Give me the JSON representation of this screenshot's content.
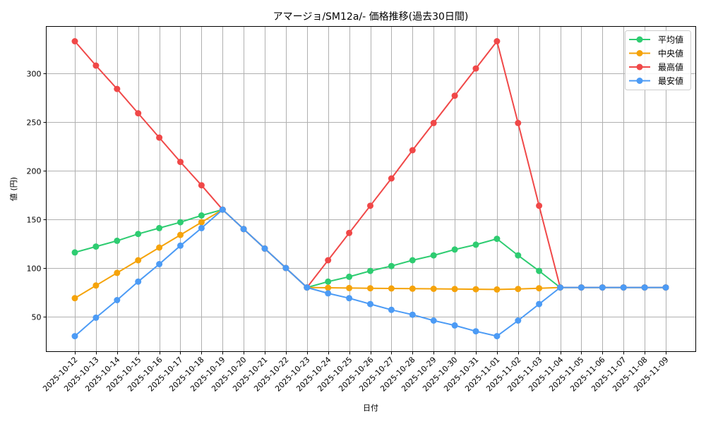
{
  "chart_data": {
    "type": "line",
    "title": "アマージョ/SM12a/- 価格推移(過去30日間)",
    "xlabel": "日付",
    "ylabel": "値 (円)",
    "ylim": [
      15,
      345
    ],
    "yticks": [
      50,
      100,
      150,
      200,
      250,
      300
    ],
    "grid": true,
    "legend_position": "upper right",
    "categories": [
      "2025-10-12",
      "2025-10-13",
      "2025-10-14",
      "2025-10-15",
      "2025-10-16",
      "2025-10-17",
      "2025-10-18",
      "2025-10-19",
      "2025-10-20",
      "2025-10-21",
      "2025-10-22",
      "2025-10-23",
      "2025-10-24",
      "2025-10-25",
      "2025-10-26",
      "2025-10-27",
      "2025-10-28",
      "2025-10-29",
      "2025-10-30",
      "2025-10-31",
      "2025-11-01",
      "2025-11-02",
      "2025-11-03",
      "2025-11-04",
      "2025-11-05",
      "2025-11-06",
      "2025-11-07",
      "2025-11-08",
      "2025-11-09"
    ],
    "series": [
      {
        "name": "平均値",
        "color": "#2ecc71",
        "values": [
          116,
          122,
          128,
          135,
          141,
          147,
          154,
          160,
          140,
          120,
          100,
          80,
          86,
          91,
          97,
          102,
          108,
          113,
          119,
          124,
          130,
          113,
          97,
          80,
          80,
          80,
          80,
          80,
          80
        ]
      },
      {
        "name": "中央値",
        "color": "#f5a30a",
        "values": [
          69,
          82,
          95,
          108,
          121,
          134,
          147,
          160,
          140,
          120,
          100,
          80,
          79.7,
          79.4,
          79.2,
          79,
          78.8,
          78.6,
          78.4,
          78.2,
          78,
          78.5,
          79.2,
          80,
          80,
          80,
          80,
          80,
          80
        ]
      },
      {
        "name": "最高値",
        "color": "#f04848",
        "values": [
          333,
          308,
          284,
          259,
          234,
          209,
          185,
          160,
          140,
          120,
          100,
          80,
          108,
          136,
          164,
          192,
          221,
          249,
          277,
          305,
          333,
          249,
          164,
          80,
          80,
          80,
          80,
          80,
          80
        ]
      },
      {
        "name": "最安値",
        "color": "#4c9bf5",
        "values": [
          30,
          49,
          67,
          86,
          104,
          123,
          141,
          160,
          140,
          120,
          100,
          80,
          74,
          69,
          63,
          57,
          52,
          46,
          41,
          35,
          30,
          46,
          63,
          80,
          80,
          80,
          80,
          80,
          80
        ]
      }
    ]
  }
}
